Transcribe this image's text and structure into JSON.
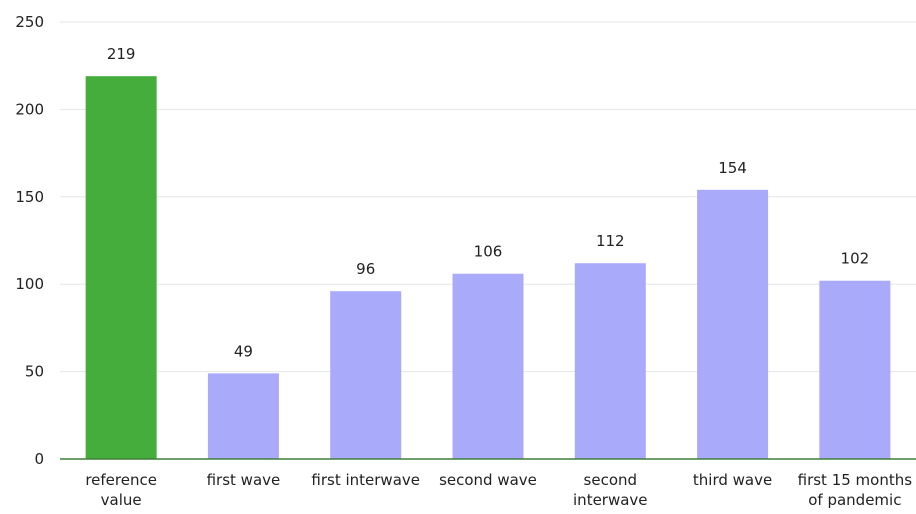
{
  "chart_data": {
    "type": "bar",
    "title": "",
    "xlabel": "",
    "ylabel": "",
    "categories": [
      [
        "reference",
        "value"
      ],
      [
        "first wave"
      ],
      [
        "first interwave"
      ],
      [
        "second wave"
      ],
      [
        "second",
        "interwave"
      ],
      [
        "third wave"
      ],
      [
        "first 15 months",
        "of pandemic"
      ]
    ],
    "values": [
      219,
      49,
      96,
      106,
      112,
      154,
      102
    ],
    "data_labels": [
      "219",
      "49",
      "96",
      "106",
      "112",
      "154",
      "102"
    ],
    "bar_colors": [
      "#45ad3c",
      "#aaaafb",
      "#aaaafb",
      "#aaaafb",
      "#aaaafb",
      "#aaaafb",
      "#aaaafb"
    ],
    "ylim": [
      0,
      250
    ],
    "yticks": [
      0,
      50,
      100,
      150,
      200,
      250
    ],
    "ytick_labels": [
      "0",
      "50",
      "100",
      "150",
      "200",
      "250"
    ],
    "grid": true,
    "legend": "none",
    "colors": {
      "grid": "#e6e6e6",
      "baseline": "#3f7e3a",
      "text": "#222222"
    }
  }
}
